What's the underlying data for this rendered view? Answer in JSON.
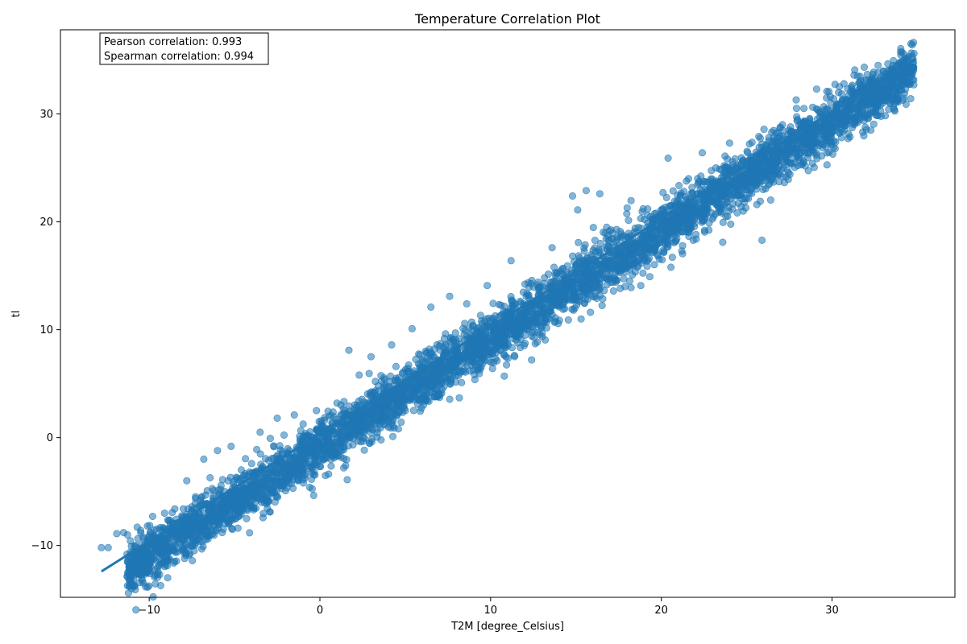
{
  "chart_data": {
    "type": "scatter",
    "title": "Temperature Correlation Plot",
    "xlabel": "T2M [degree_Celsius]",
    "ylabel": "tl",
    "xlim": [
      -15.2,
      37.2
    ],
    "ylim": [
      -14.8,
      37.8
    ],
    "x_ticks": [
      -10,
      0,
      10,
      20,
      30
    ],
    "y_ticks": [
      -10,
      0,
      10,
      20,
      30
    ],
    "x_tick_labels": [
      "−10",
      "0",
      "10",
      "20",
      "30"
    ],
    "y_tick_labels": [
      "−10",
      "0",
      "10",
      "20",
      "30"
    ],
    "grid": false,
    "point_color": "#1f77b4",
    "point_alpha": 0.55,
    "annotation": {
      "pearson": "Pearson correlation: 0.993",
      "spearman": "Spearman correlation: 0.994",
      "position": "top-left"
    },
    "regression_line": {
      "x": [
        -12.8,
        34.9
      ],
      "y": [
        -12.4,
        35.1
      ]
    },
    "series": [
      {
        "points": [
          [
            -12.8,
            -10.2
          ],
          [
            -12.4,
            -10.2
          ],
          [
            -11.9,
            -8.9
          ],
          [
            -11.5,
            -8.8
          ],
          [
            -11.3,
            -10.8
          ],
          [
            -11.1,
            -11.6
          ],
          [
            -11.0,
            -12.3
          ],
          [
            -10.9,
            -10.9
          ],
          [
            -10.7,
            -8.3
          ],
          [
            -10.5,
            -8.6
          ],
          [
            -10.3,
            -9.4
          ],
          [
            -10.1,
            -8.2
          ],
          [
            -9.8,
            -7.3
          ],
          [
            -9.6,
            -9.7
          ],
          [
            -9.3,
            -9.2
          ],
          [
            -9.1,
            -7.0
          ],
          [
            -8.9,
            -10.2
          ],
          [
            -8.7,
            -10.1
          ],
          [
            -8.5,
            -6.6
          ],
          [
            -8.2,
            -7.8
          ],
          [
            -8.0,
            -6.6
          ],
          [
            -7.8,
            -4.0
          ],
          [
            -7.6,
            -8.5
          ],
          [
            -7.3,
            -6.1
          ],
          [
            -7.0,
            -5.8
          ],
          [
            -6.8,
            -2.0
          ],
          [
            -6.5,
            -7.6
          ],
          [
            -6.2,
            -5.9
          ],
          [
            -6.0,
            -1.2
          ],
          [
            -5.7,
            -5.4
          ],
          [
            -5.4,
            -6.1
          ],
          [
            -5.2,
            -0.8
          ],
          [
            -4.9,
            -4.9
          ],
          [
            -4.6,
            -3.0
          ],
          [
            -4.3,
            -6.2
          ],
          [
            -4.0,
            -2.4
          ],
          [
            -3.7,
            -1.1
          ],
          [
            -3.5,
            0.5
          ],
          [
            -3.1,
            -4.0
          ],
          [
            -2.8,
            -3.6
          ],
          [
            -2.5,
            1.8
          ],
          [
            -2.2,
            -1.5
          ],
          [
            -1.8,
            -1.2
          ],
          [
            -1.5,
            2.1
          ],
          [
            -1.2,
            -3.4
          ],
          [
            -0.8,
            -0.3
          ],
          [
            -0.6,
            -4.6
          ],
          [
            -0.2,
            2.5
          ],
          [
            0.2,
            0.4
          ],
          [
            0.6,
            -1.2
          ],
          [
            1.0,
            3.2
          ],
          [
            1.4,
            -2.8
          ],
          [
            1.6,
            -3.9
          ],
          [
            1.7,
            8.1
          ],
          [
            2.0,
            1.4
          ],
          [
            2.3,
            5.8
          ],
          [
            2.7,
            2.2
          ],
          [
            3.0,
            7.5
          ],
          [
            3.4,
            1.6
          ],
          [
            3.8,
            3.8
          ],
          [
            4.2,
            8.6
          ],
          [
            4.6,
            2.9
          ],
          [
            5.0,
            5.2
          ],
          [
            5.4,
            10.1
          ],
          [
            5.8,
            4.7
          ],
          [
            6.2,
            6.1
          ],
          [
            6.5,
            12.1
          ],
          [
            6.9,
            5.0
          ],
          [
            7.3,
            7.5
          ],
          [
            7.6,
            13.1
          ],
          [
            8.0,
            6.9
          ],
          [
            8.3,
            5.1
          ],
          [
            8.6,
            12.4
          ],
          [
            9.0,
            8.3
          ],
          [
            9.4,
            9.9
          ],
          [
            9.8,
            14.1
          ],
          [
            10.1,
            7.8
          ],
          [
            10.5,
            10.6
          ],
          [
            10.8,
            5.7
          ],
          [
            11.2,
            16.4
          ],
          [
            11.6,
            10.1
          ],
          [
            12.0,
            12.2
          ],
          [
            12.4,
            7.2
          ],
          [
            12.8,
            13.9
          ],
          [
            13.2,
            10.9
          ],
          [
            13.6,
            17.6
          ],
          [
            14.0,
            12.6
          ],
          [
            14.4,
            14.9
          ],
          [
            14.8,
            22.4
          ],
          [
            15.1,
            21.1
          ],
          [
            15.3,
            11.0
          ],
          [
            15.6,
            22.9
          ],
          [
            16.0,
            15.9
          ],
          [
            16.4,
            22.6
          ],
          [
            16.8,
            19.5
          ],
          [
            17.2,
            13.6
          ],
          [
            17.6,
            19.1
          ],
          [
            18.0,
            21.3
          ],
          [
            18.4,
            16.1
          ],
          [
            18.8,
            14.1
          ],
          [
            19.2,
            21.2
          ],
          [
            19.6,
            17.3
          ],
          [
            20.0,
            19.7
          ],
          [
            20.4,
            25.9
          ],
          [
            20.8,
            21.3
          ],
          [
            21.2,
            17.3
          ],
          [
            21.6,
            24.0
          ],
          [
            22.0,
            21.5
          ],
          [
            22.4,
            26.4
          ],
          [
            22.8,
            19.9
          ],
          [
            23.2,
            25.0
          ],
          [
            23.6,
            18.1
          ],
          [
            24.0,
            27.3
          ],
          [
            24.4,
            23.9
          ],
          [
            24.8,
            21.0
          ],
          [
            25.2,
            22.9
          ],
          [
            25.6,
            21.6
          ],
          [
            25.9,
            18.3
          ],
          [
            26.3,
            27.8
          ],
          [
            26.7,
            25.4
          ],
          [
            27.1,
            29.0
          ],
          [
            27.5,
            26.9
          ],
          [
            27.9,
            31.3
          ],
          [
            28.3,
            27.5
          ],
          [
            28.7,
            29.5
          ],
          [
            29.1,
            32.3
          ],
          [
            29.5,
            29.0
          ],
          [
            29.9,
            31.6
          ],
          [
            30.3,
            30.6
          ],
          [
            30.7,
            32.8
          ],
          [
            31.1,
            31.0
          ],
          [
            31.5,
            33.5
          ],
          [
            31.9,
            32.4
          ],
          [
            32.3,
            33.0
          ],
          [
            32.7,
            34.5
          ],
          [
            33.1,
            33.3
          ],
          [
            33.5,
            34.0
          ],
          [
            34.0,
            34.8
          ],
          [
            34.4,
            35.0
          ],
          [
            34.8,
            35.6
          ]
        ]
      }
    ],
    "density_band": {
      "x_range": [
        -11.3,
        34.8
      ],
      "slope": 1.007,
      "intercept": -0.93,
      "noise_sd": 1.6
    }
  }
}
